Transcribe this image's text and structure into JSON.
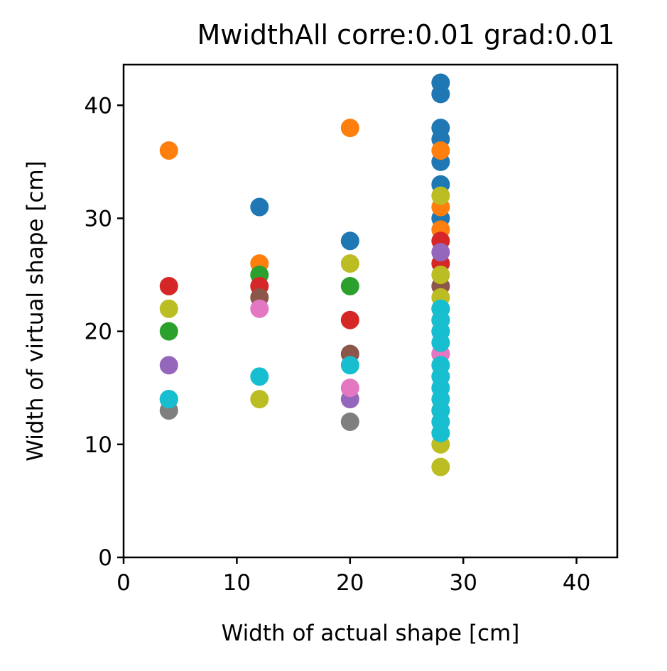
{
  "chart_data": {
    "type": "scatter",
    "title": "MwidthAll corre:0.01 grad:0.01",
    "xlabel": "Width of actual shape [cm]",
    "ylabel": "Width of virtual shape [cm]",
    "xlim": [
      0,
      43.6
    ],
    "ylim": [
      0,
      43.6
    ],
    "xticks": [
      0,
      10,
      20,
      30,
      40
    ],
    "yticks": [
      0,
      10,
      20,
      30,
      40
    ],
    "grid": false,
    "legend": "none",
    "series": [
      {
        "color": "#1f77b4",
        "points": [
          [
            4,
            14
          ],
          [
            12,
            31
          ],
          [
            20,
            28
          ],
          [
            28,
            42
          ],
          [
            28,
            41
          ],
          [
            28,
            38
          ],
          [
            28,
            37
          ],
          [
            28,
            35
          ],
          [
            28,
            33
          ],
          [
            28,
            30
          ],
          [
            28,
            20
          ]
        ]
      },
      {
        "color": "#ff7f0e",
        "points": [
          [
            4,
            36
          ],
          [
            12,
            26
          ],
          [
            20,
            38
          ],
          [
            28,
            36
          ],
          [
            28,
            31
          ],
          [
            28,
            29
          ]
        ]
      },
      {
        "color": "#2ca02c",
        "points": [
          [
            4,
            20
          ],
          [
            12,
            25
          ],
          [
            20,
            24
          ],
          [
            28,
            22
          ],
          [
            28,
            21
          ]
        ]
      },
      {
        "color": "#d62728",
        "points": [
          [
            4,
            24
          ],
          [
            12,
            24
          ],
          [
            20,
            21
          ],
          [
            28,
            28
          ],
          [
            28,
            26
          ]
        ]
      },
      {
        "color": "#9467bd",
        "points": [
          [
            4,
            17
          ],
          [
            20,
            14
          ],
          [
            28,
            27
          ],
          [
            28,
            18
          ]
        ]
      },
      {
        "color": "#8c564b",
        "points": [
          [
            12,
            23
          ],
          [
            20,
            18
          ],
          [
            28,
            24
          ]
        ]
      },
      {
        "color": "#e377c2",
        "points": [
          [
            12,
            22
          ],
          [
            20,
            15
          ],
          [
            28,
            18
          ]
        ]
      },
      {
        "color": "#7f7f7f",
        "points": [
          [
            4,
            13
          ],
          [
            20,
            12
          ],
          [
            28,
            13
          ]
        ]
      },
      {
        "color": "#bcbd22",
        "points": [
          [
            4,
            22
          ],
          [
            12,
            14
          ],
          [
            20,
            26
          ],
          [
            28,
            32
          ],
          [
            28,
            25
          ],
          [
            28,
            23
          ],
          [
            28,
            10
          ],
          [
            28,
            8
          ]
        ]
      },
      {
        "color": "#17becf",
        "points": [
          [
            4,
            14
          ],
          [
            12,
            16
          ],
          [
            20,
            17
          ],
          [
            28,
            22
          ],
          [
            28,
            21
          ],
          [
            28,
            20
          ],
          [
            28,
            19
          ],
          [
            28,
            17
          ],
          [
            28,
            16
          ],
          [
            28,
            15
          ],
          [
            28,
            14
          ],
          [
            28,
            13
          ],
          [
            28,
            12
          ],
          [
            28,
            11
          ]
        ]
      }
    ]
  }
}
